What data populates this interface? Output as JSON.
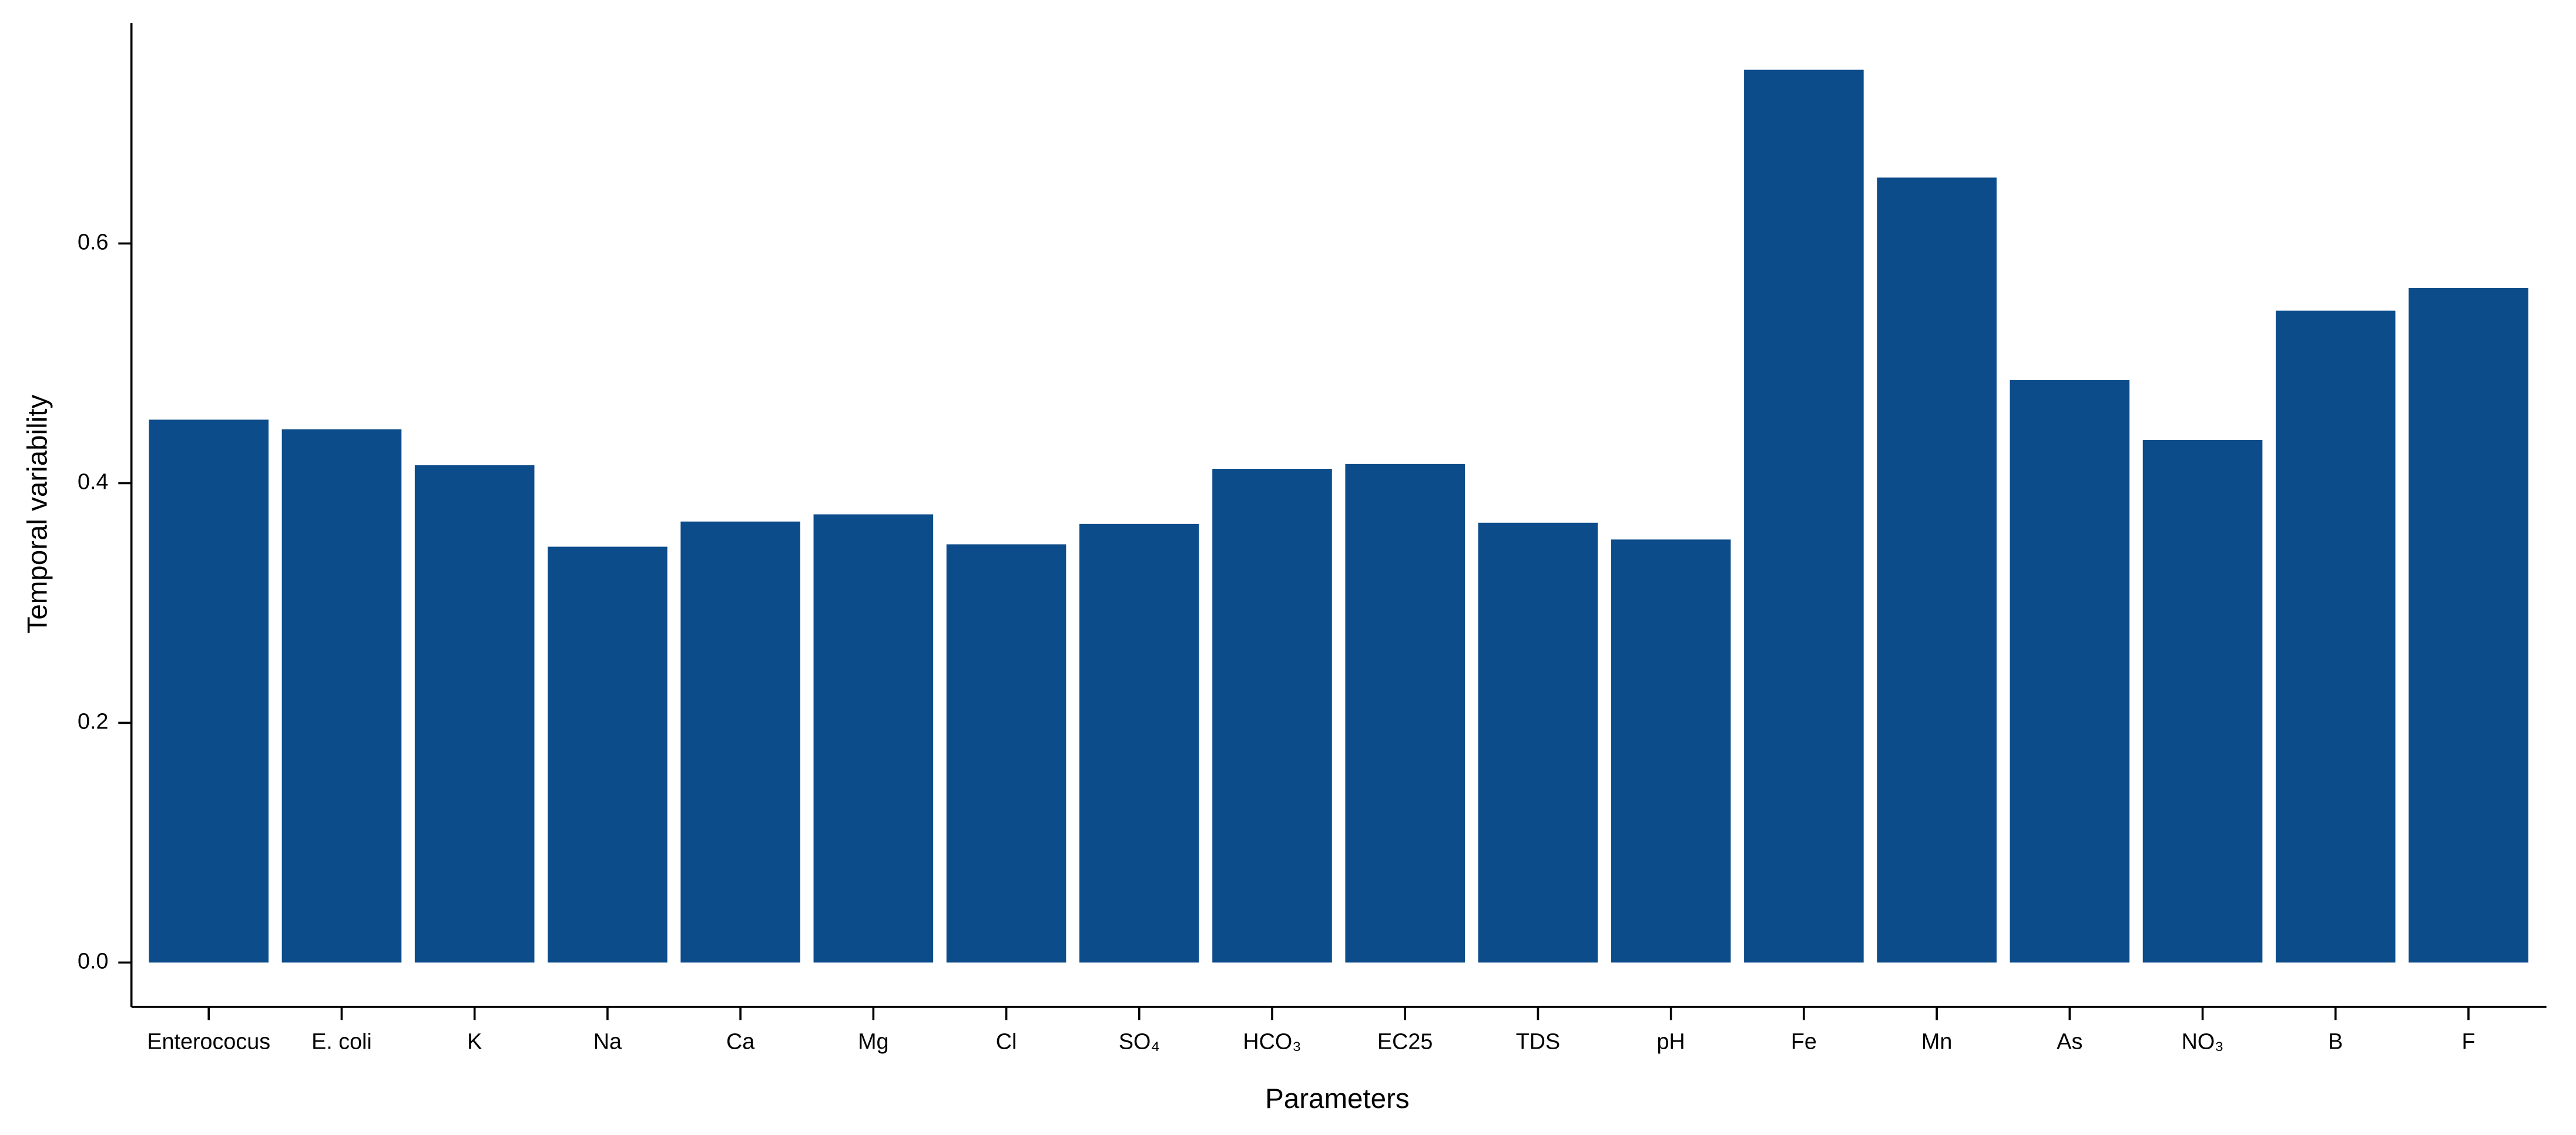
{
  "chart_data": {
    "type": "bar",
    "xlabel": "Parameters",
    "ylabel": "Temporal variability",
    "categories": [
      "Enterococus",
      "E. coli",
      "K",
      "Na",
      "Ca",
      "Mg",
      "Cl",
      "SO₄",
      "HCO₃",
      "EC25",
      "TDS",
      "pH",
      "Fe",
      "Mn",
      "As",
      "NO₃",
      "B",
      "F"
    ],
    "values": [
      0.453,
      0.445,
      0.415,
      0.347,
      0.368,
      0.374,
      0.349,
      0.366,
      0.412,
      0.416,
      0.367,
      0.353,
      0.745,
      0.655,
      0.486,
      0.436,
      0.544,
      0.563
    ],
    "color": "#0d4c8b",
    "ylim": [
      -0.037,
      0.784
    ],
    "yticks": [
      {
        "value": 0,
        "label": "0.0"
      },
      0.2,
      0.4,
      0.6
    ],
    "grid": false
  }
}
